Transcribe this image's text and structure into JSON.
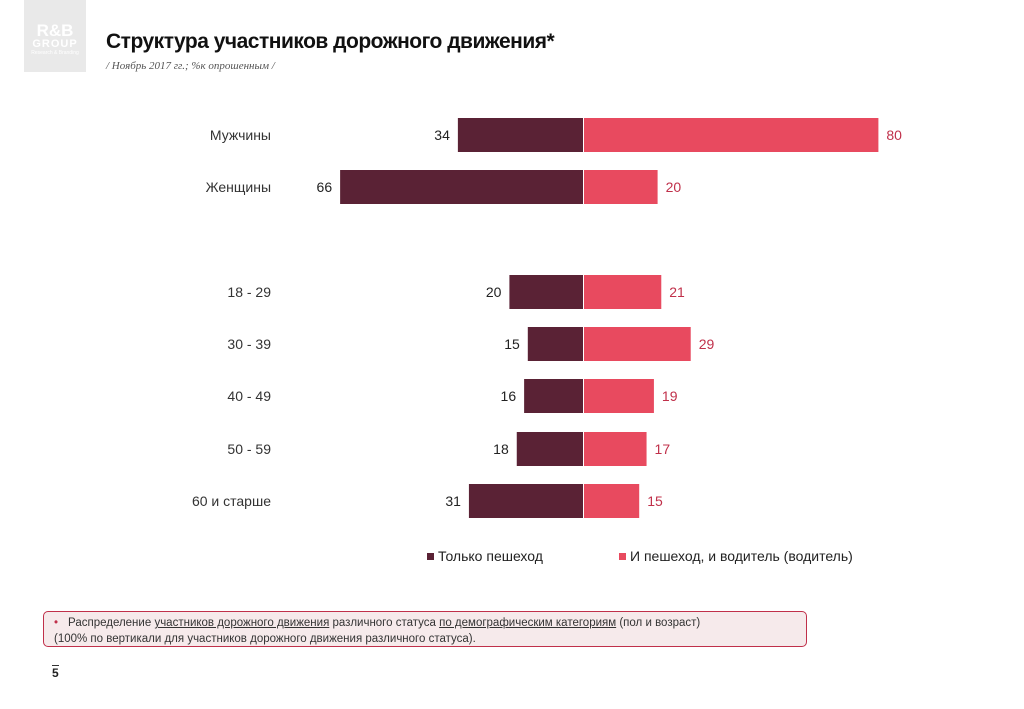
{
  "logo": {
    "line1": "R&B",
    "line2": "GROUP",
    "line3": "Research & Branding"
  },
  "header": {
    "title": "Структура участников дорожного движения*",
    "subtitle": "/ Ноябрь 2017 гг.; %к опрошенным /"
  },
  "colors": {
    "pedestrian": "#5a2235",
    "driver": "#e84a5f",
    "driver_label": "#c0304a"
  },
  "chart_data": {
    "type": "bar",
    "orientation": "horizontal-diverging",
    "categories": [
      "Мужчины",
      "Женщины",
      "18 - 29",
      "30 - 39",
      "40 - 49",
      "50 - 59",
      "60 и старше"
    ],
    "series": [
      {
        "name": "Только пешеход",
        "values": [
          34,
          66,
          20,
          15,
          16,
          18,
          31
        ]
      },
      {
        "name": "И пешеход, и водитель (водитель)",
        "values": [
          80,
          20,
          21,
          29,
          19,
          17,
          15
        ]
      }
    ],
    "legend_position": "bottom",
    "grid": false
  },
  "note": {
    "bullet": "•",
    "part1": "Распределение ",
    "link1": "участников дорожного движения",
    "part2": " различного статуса ",
    "link2": "по демографическим категориям",
    "part3": " (пол и возраст)",
    "line2": "(100% по вертикали для участников дорожного движения различного статуса)."
  },
  "page_number": "5"
}
